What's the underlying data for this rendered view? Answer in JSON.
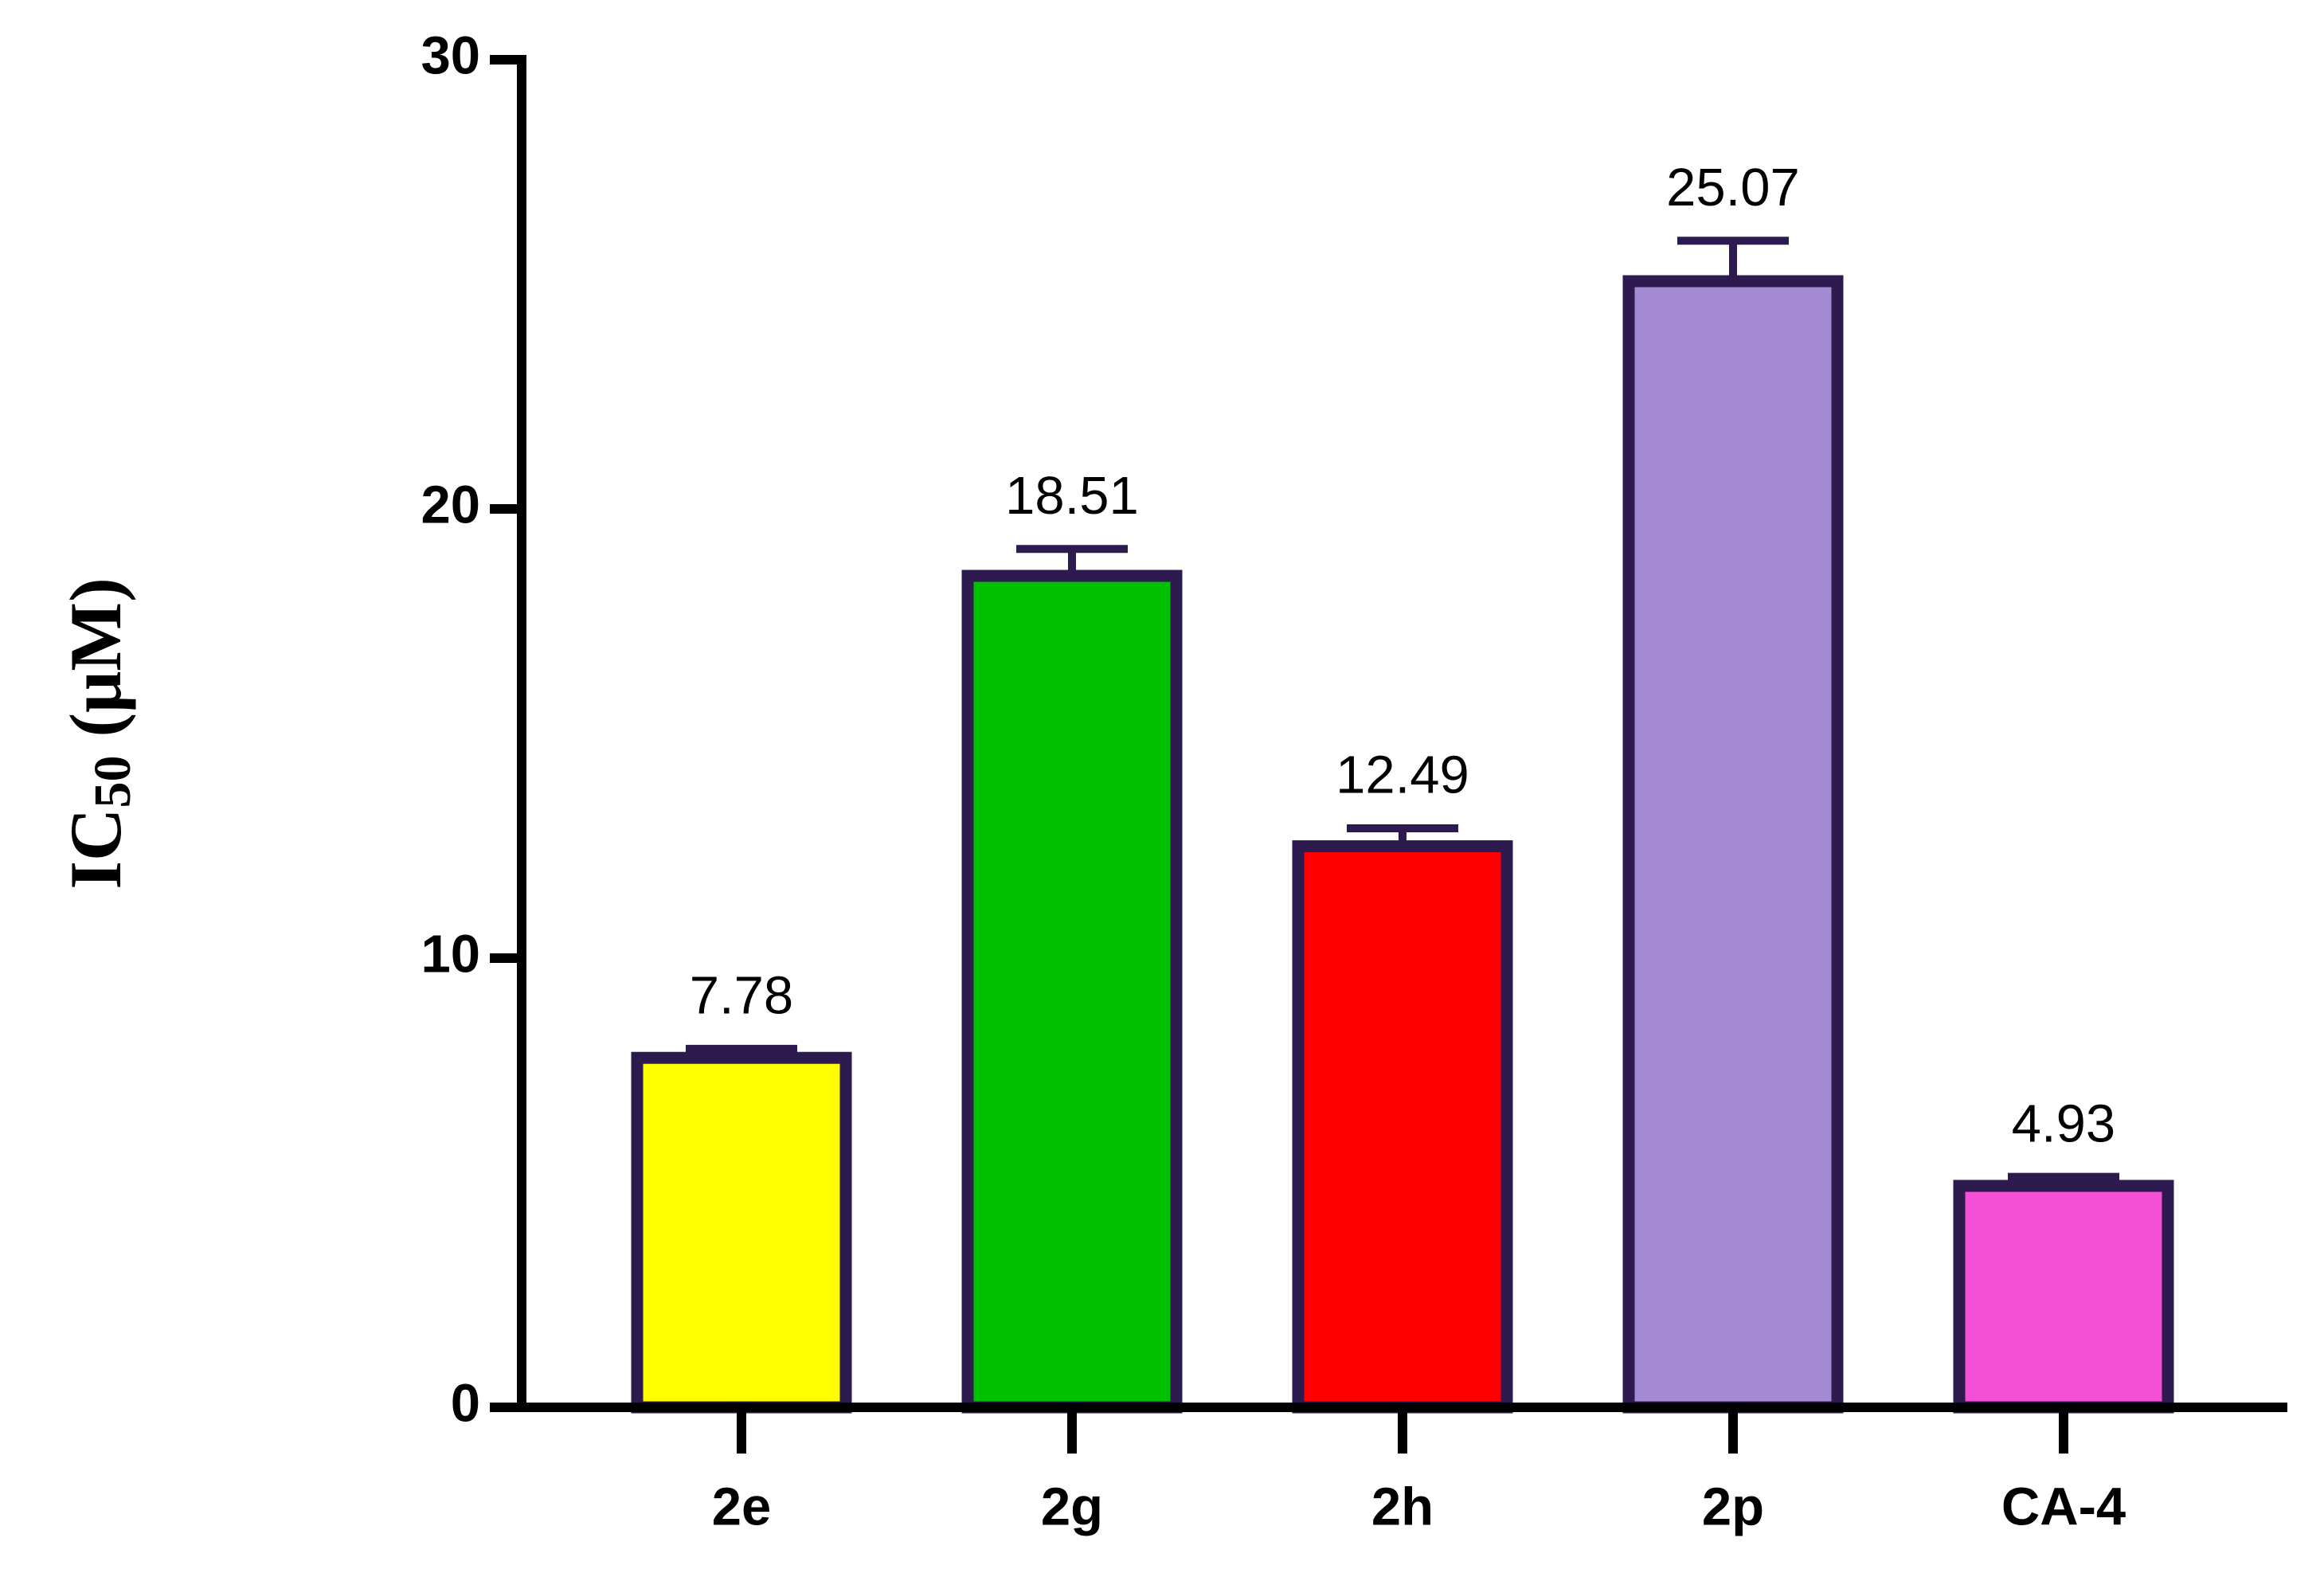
{
  "chart_data": {
    "type": "bar",
    "y_label_parts": [
      "IC",
      "50",
      " (μM)"
    ],
    "categories": [
      "2e",
      "2g",
      "2h",
      "2p",
      "CA-4"
    ],
    "values": [
      7.78,
      18.51,
      12.49,
      25.07,
      4.93
    ],
    "errors": [
      0.2,
      0.6,
      0.4,
      0.9,
      0.2
    ],
    "colors": [
      "#ffff00",
      "#00c000",
      "#ff0000",
      "#a38ad3",
      "#f54fd6"
    ],
    "edge_color": "#2d1a4e",
    "ylim": [
      0,
      30
    ],
    "yticks": [
      0,
      10,
      20,
      30
    ],
    "grid": false
  }
}
